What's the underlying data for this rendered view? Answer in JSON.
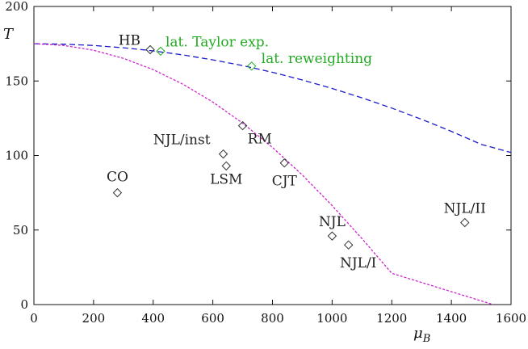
{
  "chart_data": {
    "type": "scatter",
    "title": "",
    "xlabel": "μ",
    "xlabel_sub": "B",
    "ylabel": "T",
    "xlim": [
      0,
      1600
    ],
    "ylim": [
      0,
      200
    ],
    "xticks": [
      0,
      200,
      400,
      600,
      800,
      1000,
      1200,
      1400,
      1600
    ],
    "yticks": [
      0,
      50,
      100,
      150,
      200
    ],
    "grid": false,
    "colors": {
      "black": "#333333",
      "green": "#22aa22",
      "blue": "#1a1acc",
      "magenta": "#cc22cc"
    },
    "series": [
      {
        "style": "dashed",
        "color": "#1a1acc",
        "x": [
          0,
          100,
          200,
          300,
          400,
          500,
          600,
          700,
          800,
          900,
          1000,
          1100,
          1200,
          1300,
          1400,
          1500,
          1600
        ],
        "y": [
          175.0,
          174.7,
          173.8,
          172.3,
          170.2,
          167.5,
          164.2,
          160.3,
          155.8,
          150.7,
          145.0,
          138.7,
          131.8,
          124.3,
          116.2,
          107.5,
          102.0
        ]
      },
      {
        "style": "dotted-dense",
        "color": "#cc22cc",
        "x": [
          0,
          100,
          200,
          300,
          400,
          500,
          600,
          700,
          800,
          900,
          1000,
          1100,
          1200,
          1300,
          1400,
          1500,
          1540
        ],
        "y": [
          175.0,
          173.9,
          170.6,
          165.2,
          157.6,
          147.8,
          135.9,
          121.7,
          105.4,
          87.0,
          66.4,
          44.3,
          21.0,
          -3.0,
          -1,
          -1,
          0
        ]
      }
    ],
    "points": [
      {
        "label": "HB",
        "x": 390,
        "y": 171,
        "color": "#333333",
        "label_color": "#222222"
      },
      {
        "label": "lat. Taylor exp.",
        "x": 425,
        "y": 170,
        "color": "#22aa22",
        "label_color": "#22aa22"
      },
      {
        "label": "lat. reweighting",
        "x": 730,
        "y": 160,
        "color": "#22aa22",
        "label_color": "#22aa22"
      },
      {
        "label": "RM",
        "x": 700,
        "y": 120,
        "color": "#333333",
        "label_color": "#222222"
      },
      {
        "label": "NJL/inst",
        "x": 635,
        "y": 101,
        "color": "#333333",
        "label_color": "#222222"
      },
      {
        "label": "LSM",
        "x": 645,
        "y": 93,
        "color": "#333333",
        "label_color": "#222222"
      },
      {
        "label": "CJT",
        "x": 840,
        "y": 95,
        "color": "#333333",
        "label_color": "#222222"
      },
      {
        "label": "CO",
        "x": 280,
        "y": 75,
        "color": "#333333",
        "label_color": "#222222"
      },
      {
        "label": "NJL",
        "x": 1000,
        "y": 46,
        "color": "#333333",
        "label_color": "#222222"
      },
      {
        "label": "NJL/I",
        "x": 1055,
        "y": 40,
        "color": "#333333",
        "label_color": "#222222"
      },
      {
        "label": "NJL/II",
        "x": 1445,
        "y": 55,
        "color": "#333333",
        "label_color": "#222222"
      }
    ]
  }
}
